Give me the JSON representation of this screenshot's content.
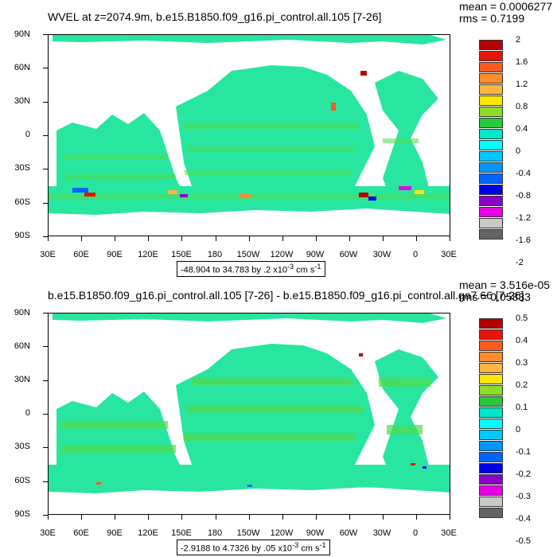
{
  "top": {
    "title": "WVEL at z=2074.9m, b.e15.B1850.f09_g16.pi_control.all.105 [7-26]",
    "mean": "mean = 0.0006277",
    "rms": "rms = 0.7199",
    "range": "-48.904 to 34.783 by .2 x10",
    "range_exp": "-3",
    "range_units": " cm s",
    "range_units_exp": "-1",
    "colorbar_labels": [
      "2",
      "1.6",
      "1.2",
      "0.8",
      "0.4",
      "0",
      "-0.4",
      "-0.8",
      "-1.2",
      "-1.6",
      "-2"
    ]
  },
  "bottom": {
    "title": "b.e15.B1850.f09_g16.pi_control.all.105 [7-26] - b.e15.B1850.f09_g16.pi_control.all.ga7.66 [7-26]",
    "mean": "mean = 3.516e-05",
    "rms": "rms = 0.05833",
    "range": "-2.9188 to 4.7326 by .05 x10",
    "range_exp": "-3",
    "range_units": " cm s",
    "range_units_exp": "-1",
    "colorbar_labels": [
      "0.5",
      "0.4",
      "0.3",
      "0.2",
      "0.1",
      "0",
      "-0.1",
      "-0.2",
      "-0.3",
      "-0.4",
      "-0.5"
    ]
  },
  "lat_labels": [
    "90N",
    "60N",
    "30N",
    "0",
    "30S",
    "60S",
    "90S"
  ],
  "lon_labels": [
    "30E",
    "60E",
    "90E",
    "120E",
    "150E",
    "180",
    "150W",
    "120W",
    "90W",
    "60W",
    "30W",
    "0",
    "30E"
  ],
  "colorbar_colors": [
    "#b40000",
    "#e8140a",
    "#ff5a1e",
    "#ff8c2d",
    "#ffb43c",
    "#ffe600",
    "#8cdc28",
    "#28c83c",
    "#00e6c8",
    "#00ffff",
    "#00c8ff",
    "#0096ff",
    "#0064ff",
    "#0000e6",
    "#8c00c8",
    "#e600e6",
    "#c8c8c8",
    "#646464"
  ],
  "colors": {
    "ocean_main": "#28e6a0",
    "ocean_alt": "#50dc50"
  }
}
